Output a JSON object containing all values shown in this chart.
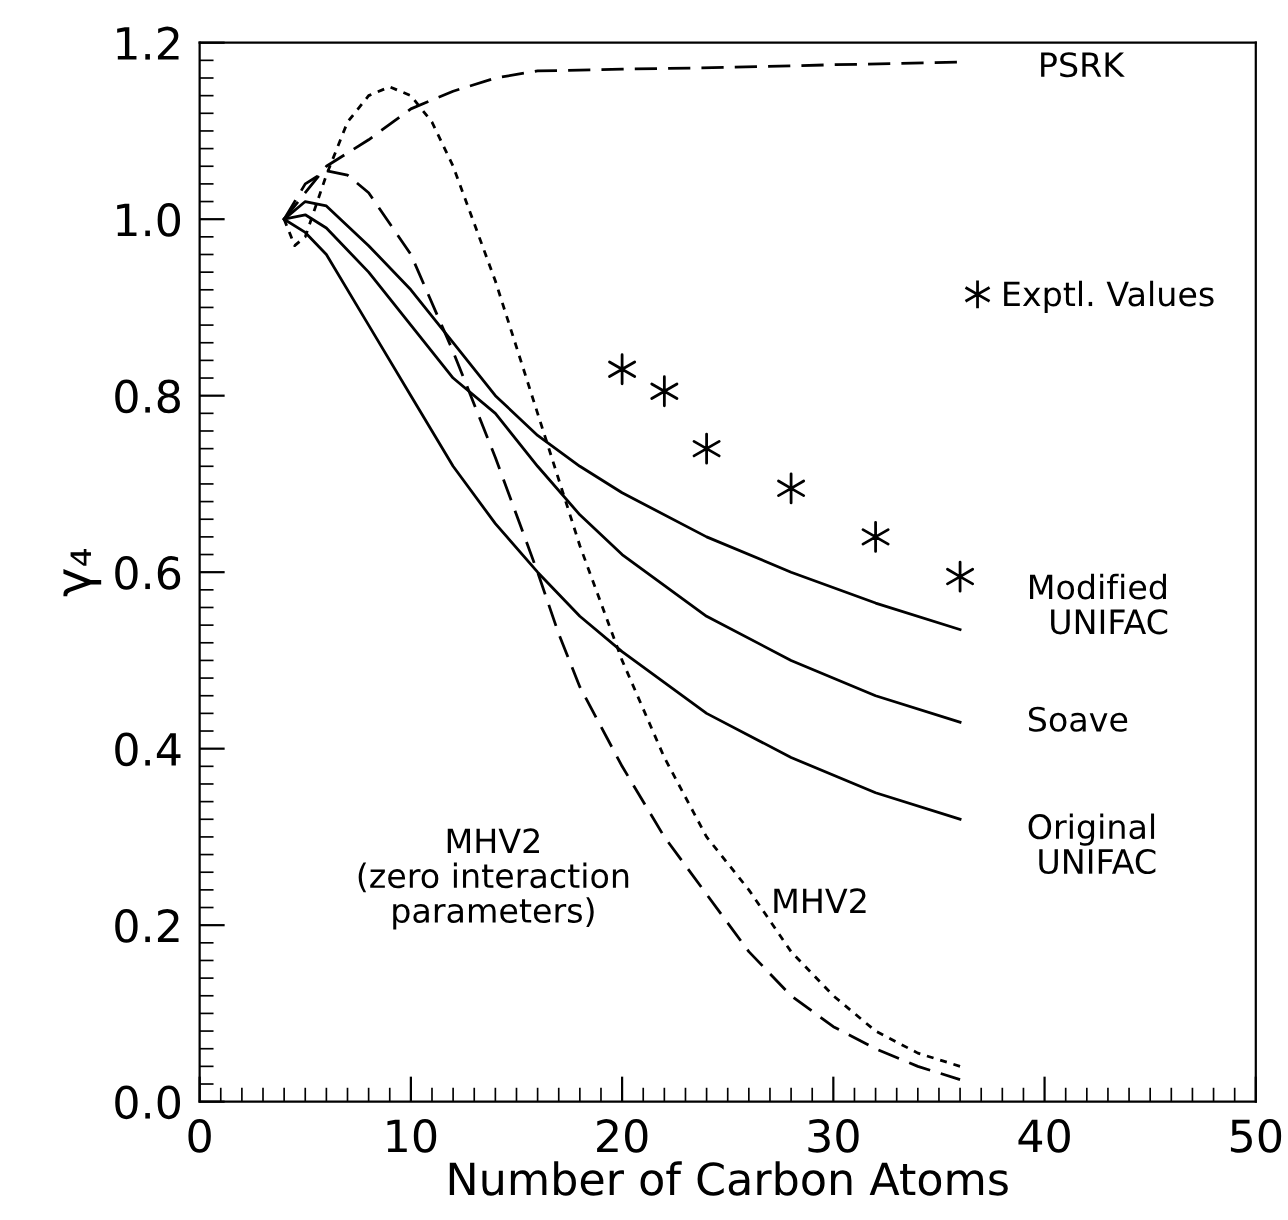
{
  "chart_data": {
    "type": "line",
    "xlabel": "Number of Carbon Atoms",
    "ylabel": "γ₄",
    "xlim": [
      0,
      50
    ],
    "ylim": [
      0,
      1.2
    ],
    "xticks": [
      0,
      10,
      20,
      30,
      40,
      50
    ],
    "yticks": [
      {
        "value": 0,
        "label": "0.0"
      },
      {
        "value": 0.2,
        "label": "0.2"
      },
      {
        "value": 0.4,
        "label": "0.4"
      },
      {
        "value": 0.6,
        "label": "0.6"
      },
      {
        "value": 0.8,
        "label": "0.8"
      },
      {
        "value": 1.0,
        "label": "1.0"
      },
      {
        "value": 1.2,
        "label": "1.2"
      }
    ],
    "grid": false,
    "legend": "right",
    "series": [
      {
        "line_style": "dashed",
        "color": "#000000",
        "x": [
          4,
          5,
          6,
          8,
          10,
          12,
          14,
          16,
          20,
          25,
          30,
          36
        ],
        "values": [
          1.0,
          1.03,
          1.06,
          1.09,
          1.125,
          1.145,
          1.16,
          1.168,
          1.17,
          1.172,
          1.175,
          1.178
        ]
      },
      {
        "line_style": "solid",
        "color": "#000000",
        "x": [
          4,
          5,
          6,
          8,
          10,
          12,
          14,
          16,
          18,
          20,
          24,
          28,
          32,
          36
        ],
        "values": [
          1.0,
          1.02,
          1.015,
          0.97,
          0.92,
          0.86,
          0.8,
          0.755,
          0.72,
          0.69,
          0.64,
          0.6,
          0.565,
          0.535
        ]
      },
      {
        "line_style": "solid",
        "color": "#000000",
        "x": [
          4,
          5,
          6,
          8,
          10,
          12,
          14,
          16,
          18,
          20,
          24,
          28,
          32,
          36
        ],
        "values": [
          1.0,
          1.005,
          0.99,
          0.94,
          0.88,
          0.82,
          0.78,
          0.72,
          0.665,
          0.62,
          0.55,
          0.5,
          0.46,
          0.43
        ]
      },
      {
        "line_style": "solid",
        "color": "#000000",
        "x": [
          4,
          5,
          6,
          8,
          10,
          12,
          14,
          16,
          18,
          20,
          24,
          28,
          32,
          36
        ],
        "values": [
          1.0,
          0.985,
          0.96,
          0.88,
          0.8,
          0.72,
          0.655,
          0.6,
          0.55,
          0.51,
          0.44,
          0.39,
          0.35,
          0.32
        ]
      },
      {
        "line_style": "dashed",
        "color": "#000000",
        "x": [
          4,
          5,
          6,
          7,
          8,
          10,
          12,
          14,
          16,
          17,
          18,
          20,
          22,
          24,
          26,
          28,
          30,
          32,
          34,
          36
        ],
        "values": [
          1.0,
          1.04,
          1.055,
          1.05,
          1.03,
          0.96,
          0.85,
          0.73,
          0.6,
          0.53,
          0.47,
          0.38,
          0.3,
          0.235,
          0.17,
          0.12,
          0.085,
          0.06,
          0.04,
          0.025
        ]
      },
      {
        "line_style": "dotted",
        "color": "#000000",
        "x": [
          4,
          4.5,
          5,
          6,
          7,
          8,
          9,
          10,
          11,
          12,
          14,
          16,
          18,
          20,
          22,
          24,
          26,
          28,
          30,
          32,
          34,
          36
        ],
        "values": [
          1.0,
          0.97,
          0.98,
          1.05,
          1.11,
          1.14,
          1.15,
          1.14,
          1.11,
          1.06,
          0.93,
          0.78,
          0.63,
          0.5,
          0.39,
          0.3,
          0.24,
          0.17,
          0.12,
          0.08,
          0.055,
          0.04
        ]
      },
      {
        "type": "scatter",
        "name": "Exptl. Values",
        "marker": "cross",
        "color": "#000000",
        "x": [
          20,
          22,
          24,
          28,
          32,
          36
        ],
        "values": [
          0.83,
          0.805,
          0.74,
          0.695,
          0.64,
          0.595
        ]
      }
    ],
    "annotations": [
      {
        "text": "PSRK",
        "x": 36,
        "y": 1.178
      },
      {
        "text": "Modified\nUNIFAC",
        "x": 36,
        "y": 0.535
      },
      {
        "text": "Soave",
        "x": 36,
        "y": 0.43
      },
      {
        "text": "Original\nUNIFAC",
        "x": 36,
        "y": 0.32
      },
      {
        "text": "MHV2\n(zero interaction\nparameters)",
        "x": 22,
        "y": 0.3
      },
      {
        "text": "MHV2",
        "x": 26,
        "y": 0.24
      }
    ]
  }
}
